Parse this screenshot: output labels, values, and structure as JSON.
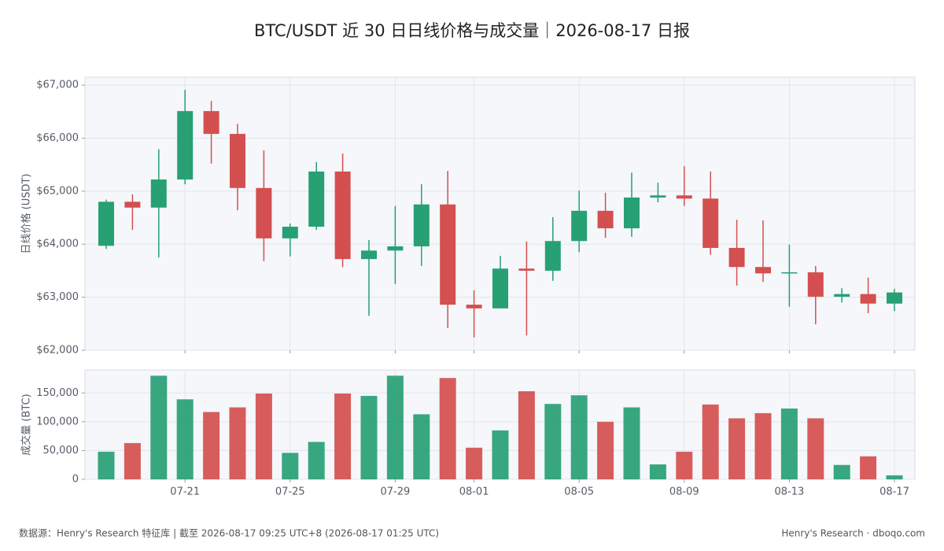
{
  "header": {
    "title": "BTC/USDT 近 30 日日线价格与成交量｜2026-08-17 日报"
  },
  "footer": {
    "source": "数据源：Henry's Research 特征库 | 截至 2026-08-17 09:25 UTC+8 (2026-08-17 01:25 UTC)",
    "brand": "Henry's Research · dboqo.com"
  },
  "chart_data": [
    {
      "type": "candlestick",
      "y_label": "日线价格 (USDT)",
      "categories": [
        null,
        null,
        null,
        "07-21",
        null,
        null,
        null,
        "07-25",
        null,
        null,
        null,
        "07-29",
        null,
        null,
        "08-01",
        null,
        null,
        null,
        "08-05",
        null,
        null,
        null,
        "08-09",
        null,
        null,
        null,
        "08-13",
        null,
        null,
        null,
        "08-17"
      ],
      "open": [
        63970,
        64800,
        64690,
        65220,
        66510,
        66080,
        65060,
        64110,
        64330,
        65370,
        63720,
        63880,
        63960,
        64750,
        62860,
        62790,
        63540,
        63500,
        64060,
        64630,
        64300,
        64880,
        64920,
        64860,
        63930,
        63570,
        63450,
        63470,
        63010,
        63060,
        62880
      ],
      "high": [
        64840,
        64940,
        65790,
        66910,
        66700,
        66270,
        65770,
        64390,
        65550,
        65710,
        64080,
        64720,
        65130,
        65380,
        63130,
        63780,
        64050,
        64510,
        65010,
        64970,
        65350,
        65160,
        65470,
        65370,
        64460,
        64450,
        63990,
        63590,
        63170,
        63370,
        63160
      ],
      "low": [
        63910,
        64270,
        63750,
        65130,
        65520,
        64640,
        63680,
        63770,
        64270,
        63570,
        62650,
        63250,
        63590,
        62420,
        62240,
        62790,
        62280,
        63310,
        63850,
        64120,
        64140,
        64790,
        64720,
        63800,
        63220,
        63290,
        62820,
        62490,
        62900,
        62700,
        62740
      ],
      "close": [
        64800,
        64690,
        65220,
        66510,
        66080,
        65060,
        64110,
        64330,
        65370,
        63720,
        63880,
        63960,
        64750,
        62860,
        62790,
        63540,
        63500,
        64060,
        64630,
        64300,
        64880,
        64920,
        64860,
        63930,
        63570,
        63450,
        63470,
        63010,
        63060,
        62880,
        63090
      ],
      "up_color": "#27a074",
      "down_color": "#d44f4f",
      "ylim": [
        62000,
        67150
      ],
      "yticks": [
        {
          "value": 62000,
          "label": "$62,000"
        },
        {
          "value": 63000,
          "label": "$63,000"
        },
        {
          "value": 64000,
          "label": "$64,000"
        },
        {
          "value": 65000,
          "label": "$65,000"
        },
        {
          "value": 66000,
          "label": "$66,000"
        },
        {
          "value": 67000,
          "label": "$67,000"
        }
      ],
      "grid": true
    },
    {
      "type": "bar",
      "y_label": "成交量 (BTC)",
      "categories": [
        null,
        null,
        null,
        "07-21",
        null,
        null,
        null,
        "07-25",
        null,
        null,
        null,
        "07-29",
        null,
        null,
        "08-01",
        null,
        null,
        null,
        "08-05",
        null,
        null,
        null,
        "08-09",
        null,
        null,
        null,
        "08-13",
        null,
        null,
        null,
        "08-17"
      ],
      "values": [
        48000,
        63000,
        180000,
        139000,
        117000,
        125000,
        149000,
        46000,
        65000,
        149000,
        145000,
        180000,
        113000,
        176000,
        55000,
        85000,
        153000,
        131000,
        146000,
        100000,
        125000,
        26000,
        48000,
        130000,
        106000,
        115000,
        123000,
        106000,
        25000,
        40000,
        7000
      ],
      "ylim": [
        0,
        190000
      ],
      "yticks": [
        0,
        {
          "value": 50000,
          "label": "50,000"
        },
        {
          "value": 100000,
          "label": "100,000"
        },
        {
          "value": 150000,
          "label": "150,000"
        }
      ],
      "grid": true
    }
  ]
}
